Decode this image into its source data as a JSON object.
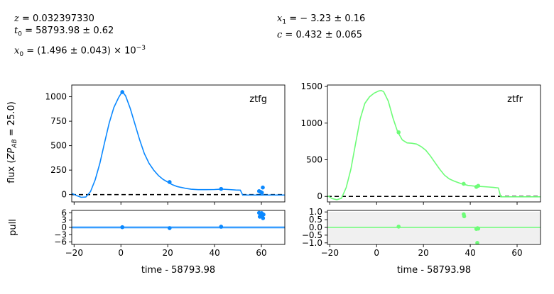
{
  "header": {
    "left": [
      {
        "sym": "z",
        "txt": " = 0.032397330"
      },
      {
        "sym": "t",
        "sub": "0",
        "txt": " = 58793.98 ± 0.62"
      },
      {
        "sym": "x",
        "sub": "0",
        "txt": " = (1.496 ± 0.043) × 10",
        "sup": "−3"
      }
    ],
    "right": [
      {
        "sym": "x",
        "sub": "1",
        "txt": " = − 3.23 ± 0.16"
      },
      {
        "sym": "c",
        "txt": " = 0.432 ± 0.065"
      }
    ]
  },
  "ylabel_flux": "flux (ZP_AB = 25.0)",
  "ylabel_pull": "pull",
  "chart_data": [
    {
      "type": "line",
      "panel": "flux",
      "band_label": "ztfg",
      "color": "#0a88ff",
      "xlim": [
        -21,
        70
      ],
      "ylim": [
        -75,
        1120
      ],
      "xticks": [
        -20,
        0,
        20,
        40,
        60
      ],
      "yticks": [
        0,
        250,
        500,
        750,
        1000
      ],
      "zero_line": true,
      "model": [
        [
          -21,
          12
        ],
        [
          -19,
          -10
        ],
        [
          -17,
          -28
        ],
        [
          -15,
          -25
        ],
        [
          -13,
          30
        ],
        [
          -11,
          150
        ],
        [
          -9,
          320
        ],
        [
          -7,
          530
        ],
        [
          -5,
          730
        ],
        [
          -3,
          890
        ],
        [
          -1,
          990
        ],
        [
          0,
          1030
        ],
        [
          1,
          1040
        ],
        [
          2,
          1010
        ],
        [
          4,
          880
        ],
        [
          6,
          720
        ],
        [
          8,
          560
        ],
        [
          10,
          420
        ],
        [
          12,
          320
        ],
        [
          14,
          250
        ],
        [
          16,
          195
        ],
        [
          18,
          155
        ],
        [
          20,
          128
        ],
        [
          22,
          100
        ],
        [
          24,
          82
        ],
        [
          26,
          72
        ],
        [
          28,
          62
        ],
        [
          30,
          55
        ],
        [
          33,
          50
        ],
        [
          36,
          50
        ],
        [
          40,
          52
        ],
        [
          43,
          56
        ],
        [
          46,
          52
        ],
        [
          49,
          47
        ],
        [
          51,
          45
        ],
        [
          52,
          -5
        ],
        [
          56,
          -5
        ],
        [
          60,
          -5
        ],
        [
          65,
          -5
        ],
        [
          70,
          -5
        ]
      ],
      "points": [
        {
          "x": 0.6,
          "y": 1048,
          "err": 10
        },
        {
          "x": 20.8,
          "y": 128,
          "err": 12
        },
        {
          "x": 42.8,
          "y": 58,
          "err": 10
        },
        {
          "x": 59.0,
          "y": 35,
          "err": 10
        },
        {
          "x": 59.6,
          "y": 28,
          "err": 10
        },
        {
          "x": 60.2,
          "y": 20,
          "err": 10
        },
        {
          "x": 60.6,
          "y": 72,
          "err": 14
        }
      ]
    },
    {
      "type": "line",
      "panel": "flux",
      "band_label": "ztfr",
      "color": "#6efc78",
      "xlim": [
        -21,
        70
      ],
      "ylim": [
        -75,
        1520
      ],
      "xticks": [
        -20,
        0,
        20,
        40,
        60
      ],
      "yticks": [
        0,
        500,
        1000,
        1500
      ],
      "zero_line": true,
      "model": [
        [
          -21,
          10
        ],
        [
          -19,
          -30
        ],
        [
          -17,
          -45
        ],
        [
          -15,
          -25
        ],
        [
          -13,
          120
        ],
        [
          -11,
          370
        ],
        [
          -9,
          720
        ],
        [
          -7,
          1060
        ],
        [
          -5,
          1270
        ],
        [
          -3,
          1360
        ],
        [
          -1,
          1410
        ],
        [
          1,
          1440
        ],
        [
          2,
          1445
        ],
        [
          3,
          1430
        ],
        [
          5,
          1300
        ],
        [
          7,
          1070
        ],
        [
          9,
          880
        ],
        [
          11,
          770
        ],
        [
          13,
          730
        ],
        [
          15,
          725
        ],
        [
          17,
          715
        ],
        [
          19,
          680
        ],
        [
          21,
          630
        ],
        [
          23,
          550
        ],
        [
          25,
          460
        ],
        [
          27,
          370
        ],
        [
          29,
          290
        ],
        [
          31,
          240
        ],
        [
          33,
          210
        ],
        [
          36,
          175
        ],
        [
          39,
          150
        ],
        [
          42,
          140
        ],
        [
          45,
          135
        ],
        [
          48,
          128
        ],
        [
          50,
          122
        ],
        [
          52,
          115
        ],
        [
          53,
          -5
        ],
        [
          56,
          -5
        ],
        [
          60,
          -5
        ],
        [
          65,
          -5
        ],
        [
          70,
          -5
        ]
      ],
      "points": [
        {
          "x": 9.4,
          "y": 875,
          "err": 14
        },
        {
          "x": 37.2,
          "y": 172,
          "err": 10
        },
        {
          "x": 42.6,
          "y": 130,
          "err": 10
        },
        {
          "x": 43.4,
          "y": 145,
          "err": 10
        }
      ]
    },
    {
      "type": "scatter",
      "panel": "pull",
      "band_label": "ztfg",
      "color": "#0a88ff",
      "xlabel": "time - 58793.98",
      "xlim": [
        -21,
        70
      ],
      "ylim": [
        -7,
        7
      ],
      "xticks": [
        -20,
        0,
        20,
        40,
        60
      ],
      "yticks": [
        -6,
        -3,
        0,
        3,
        6
      ],
      "shaded_band": false,
      "points": [
        {
          "x": 0.6,
          "y": 0.1
        },
        {
          "x": 20.8,
          "y": -0.3
        },
        {
          "x": 42.8,
          "y": 0.3
        },
        {
          "x": 59.0,
          "y": 6.0
        },
        {
          "x": 59.3,
          "y": 4.4
        },
        {
          "x": 59.7,
          "y": 5.0
        },
        {
          "x": 60.1,
          "y": 5.9
        },
        {
          "x": 60.4,
          "y": 4.9
        },
        {
          "x": 60.7,
          "y": 3.8
        },
        {
          "x": 60.9,
          "y": 5.3
        }
      ]
    },
    {
      "type": "scatter",
      "panel": "pull",
      "band_label": "ztfr",
      "color": "#6efc78",
      "xlabel": "time - 58793.98",
      "xlim": [
        -21,
        70
      ],
      "ylim": [
        -1.1,
        1.1
      ],
      "xticks": [
        -20,
        0,
        20,
        40,
        60
      ],
      "yticks": [
        -1.0,
        -0.5,
        0.0,
        0.5,
        1.0
      ],
      "ytick_labels": [
        "−1.0",
        "−0.5",
        "0.0",
        "0.5",
        "1.0"
      ],
      "shaded_band": true,
      "points": [
        {
          "x": 9.4,
          "y": 0.05
        },
        {
          "x": 37.2,
          "y": 0.85
        },
        {
          "x": 37.4,
          "y": 0.72
        },
        {
          "x": 42.6,
          "y": -0.1
        },
        {
          "x": 43.1,
          "y": -0.05
        },
        {
          "x": 43.4,
          "y": -0.08
        },
        {
          "x": 43.0,
          "y": -1.0
        }
      ]
    }
  ]
}
